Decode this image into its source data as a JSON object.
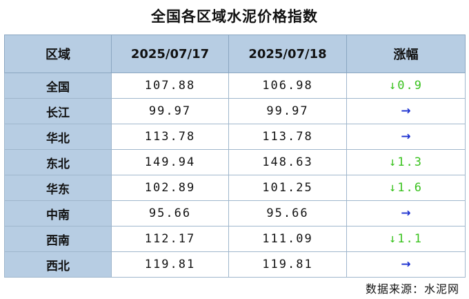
{
  "title": "全国各区域水泥价格指数",
  "table": {
    "headers": [
      "区域",
      "2025/07/17",
      "2025/07/18",
      "涨幅"
    ],
    "rows": [
      {
        "region": "全国",
        "d1": "107.88",
        "d2": "106.98",
        "change": "↓0.9",
        "trend": "down"
      },
      {
        "region": "长江",
        "d1": "99.97",
        "d2": "99.97",
        "change": "→",
        "trend": "flat"
      },
      {
        "region": "华北",
        "d1": "113.78",
        "d2": "113.78",
        "change": "→",
        "trend": "flat"
      },
      {
        "region": "东北",
        "d1": "149.94",
        "d2": "148.63",
        "change": "↓1.3",
        "trend": "down"
      },
      {
        "region": "华东",
        "d1": "102.89",
        "d2": "101.25",
        "change": "↓1.6",
        "trend": "down"
      },
      {
        "region": "中南",
        "d1": "95.66",
        "d2": "95.66",
        "change": "→",
        "trend": "flat"
      },
      {
        "region": "西南",
        "d1": "112.17",
        "d2": "111.09",
        "change": "↓1.1",
        "trend": "down"
      },
      {
        "region": "西北",
        "d1": "119.81",
        "d2": "119.81",
        "change": "→",
        "trend": "flat"
      }
    ]
  },
  "source": "数据来源：水泥网",
  "colors": {
    "header_bg": "#b7cde3",
    "down": "#39c21e",
    "flat": "#1a2fd0"
  }
}
